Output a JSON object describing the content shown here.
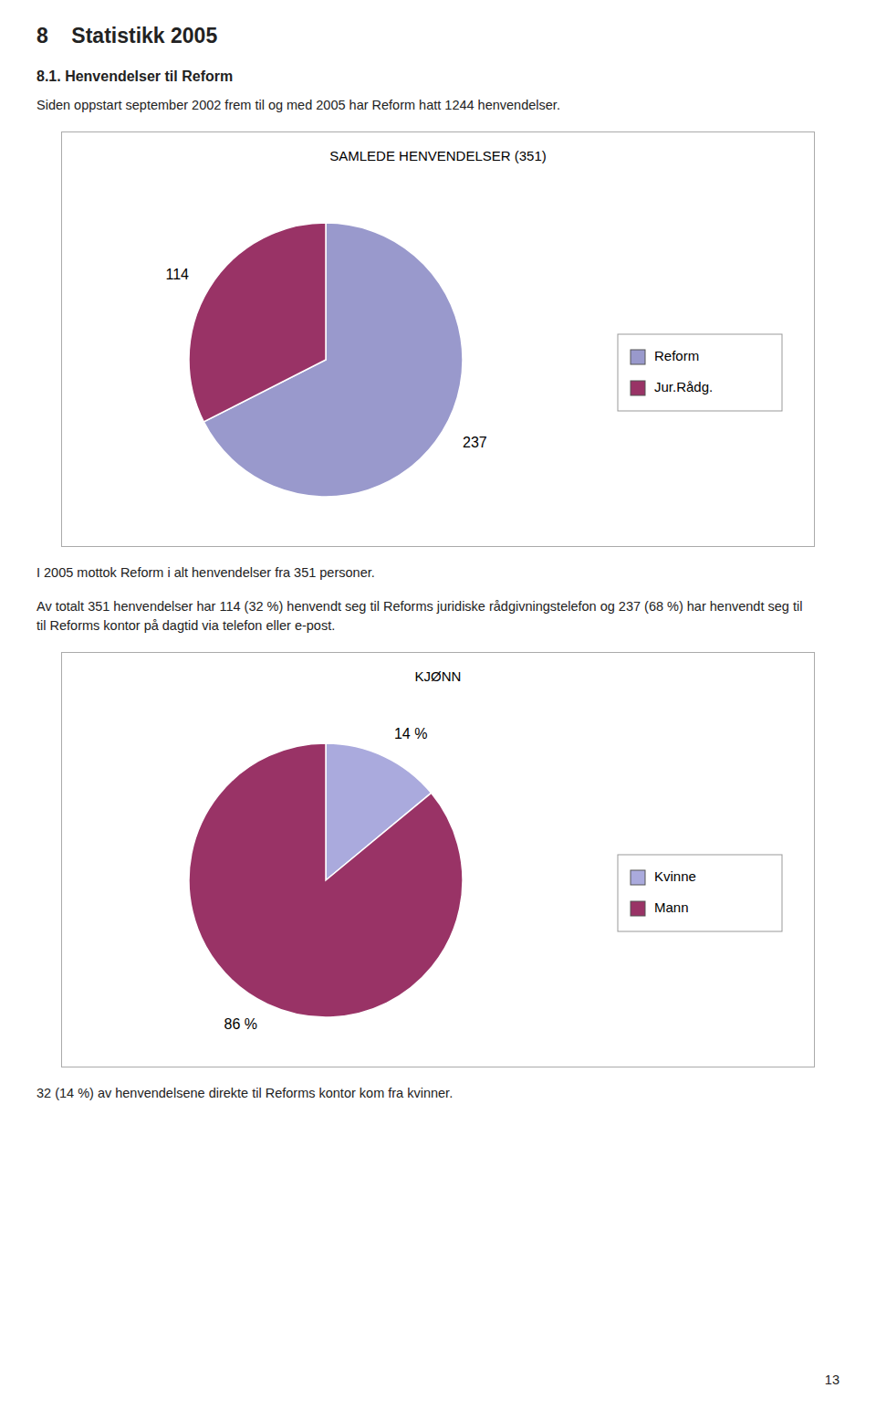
{
  "page_title": "8    Statistikk 2005",
  "section_title": "8.1.    Henvendelser til Reform",
  "section_text": "Siden oppstart september 2002 frem til og med 2005 har Reform hatt 1244 henvendelser.",
  "middle_text": [
    "I 2005 mottok Reform i alt henvendelser fra 351 personer.",
    "Av totalt 351 henvendelser har 114 (32 %) henvendt seg til Reforms juridiske rådgivningstelefon og 237 (68 %) har henvendt seg til",
    "til Reforms kontor på dagtid via telefon eller e-post."
  ],
  "bottom_text": "32 (14 %) av henvendelsene direkte til Reforms kontor kom fra kvinner.",
  "page_number": "13",
  "chart_data": [
    {
      "type": "pie",
      "title": "SAMLEDE HENVENDELSER (351)",
      "categories": [
        "Reform",
        "Jur.Rådg."
      ],
      "values": [
        237,
        114
      ],
      "colors": [
        "#9999cc",
        "#993366"
      ],
      "data_labels": true,
      "legend": "right"
    },
    {
      "type": "pie",
      "title": "KJØNN",
      "categories": [
        "Kvinne",
        "Mann"
      ],
      "values": [
        14,
        86
      ],
      "value_labels": [
        "14 %",
        "86 %"
      ],
      "colors": [
        "#aaaadd",
        "#993366"
      ],
      "data_labels": true,
      "legend": "right"
    }
  ]
}
